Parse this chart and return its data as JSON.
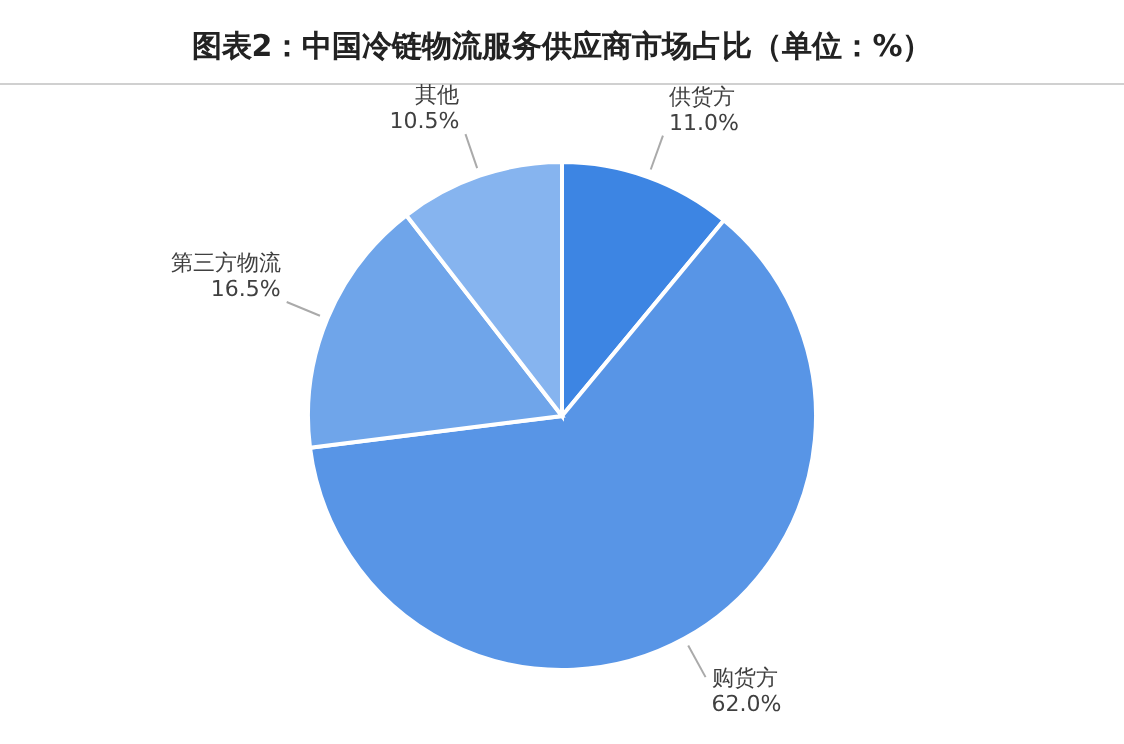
{
  "chart_data": {
    "type": "pie",
    "title": "图表2：中国冷链物流服务供应商市场占比（单位：%）",
    "categories": [
      "供货方",
      "购货方",
      "第三方物流",
      "其他"
    ],
    "values": [
      11.0,
      62.0,
      16.5,
      10.5
    ],
    "value_labels": [
      "11.0%",
      "62.0%",
      "16.5%",
      "10.5%"
    ],
    "colors": [
      "#3d85e3",
      "#5895e6",
      "#6fa5ea",
      "#86b4ef"
    ]
  }
}
